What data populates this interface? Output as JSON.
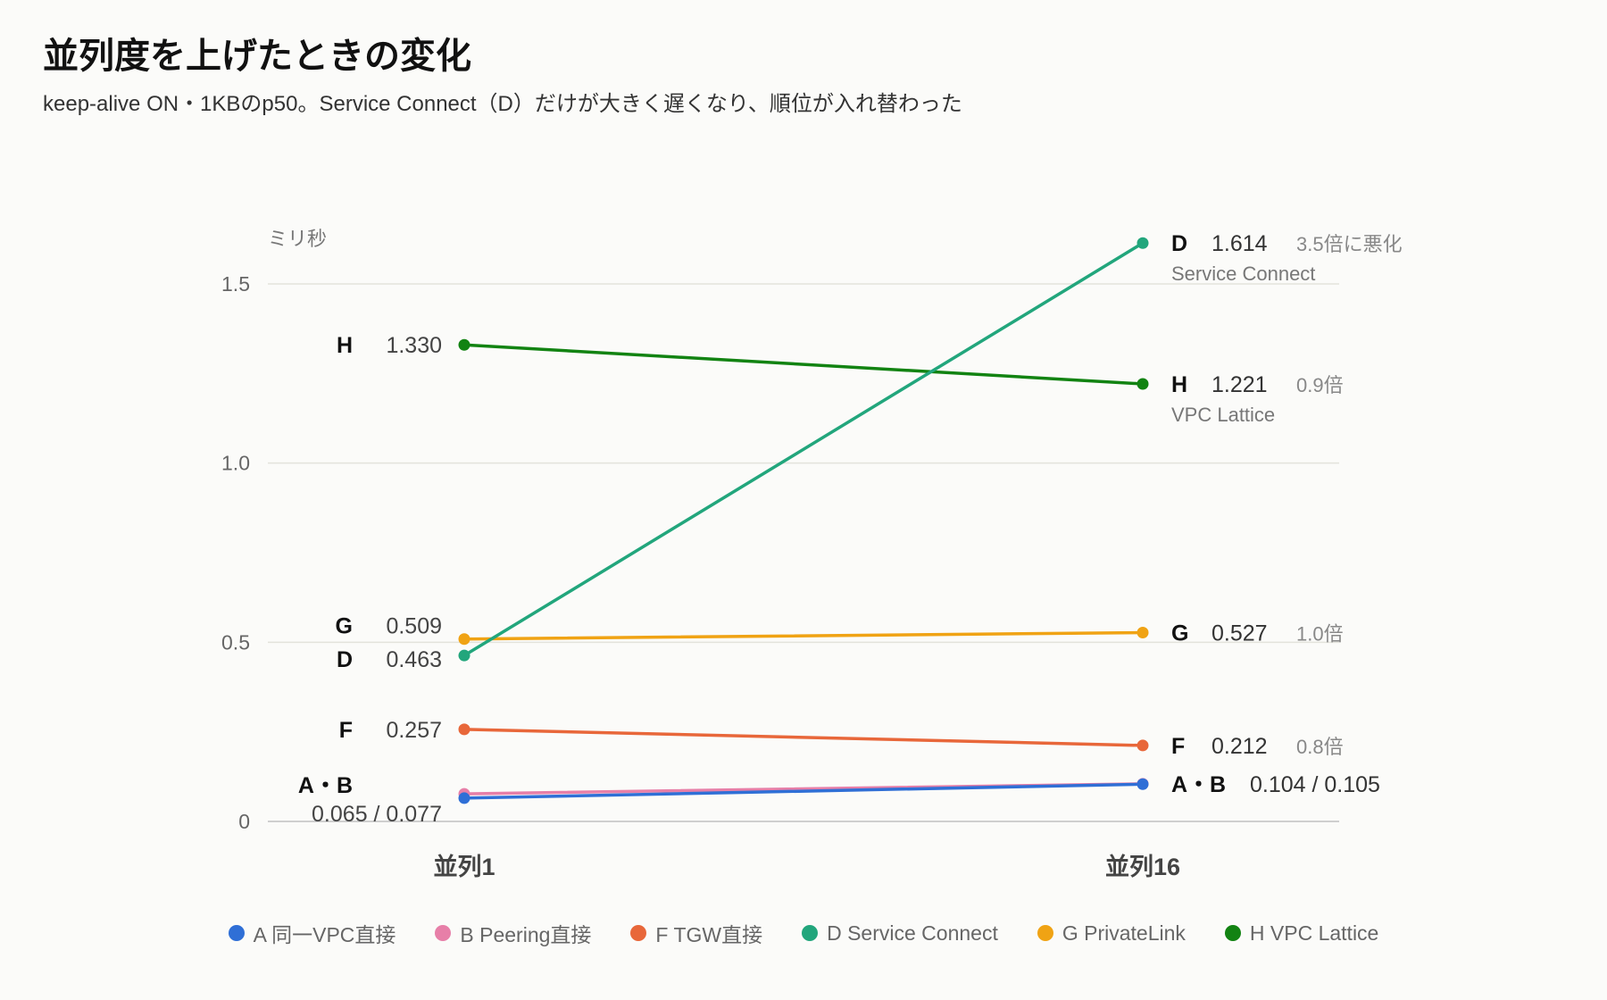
{
  "chart_data": {
    "type": "line",
    "title": "並列度を上げたときの変化",
    "subtitle": "keep-alive ON・1KBのp50。Service Connect（D）だけが大きく遅くなり、順位が入れ替わった",
    "ylabel": "ミリ秒",
    "ylim": [
      0,
      1.75
    ],
    "yticks": [
      {
        "value": 0,
        "label": "0"
      },
      {
        "value": 0.5,
        "label": "0.5"
      },
      {
        "value": 1.0,
        "label": "1.0"
      },
      {
        "value": 1.5,
        "label": "1.5"
      }
    ],
    "categories": [
      "並列1",
      "並列16"
    ],
    "grid": true,
    "legend_position": "bottom",
    "series": [
      {
        "id": "a",
        "name": "A 同一VPC直接",
        "color": "#2f6fd6",
        "values": [
          0.065,
          0.104
        ]
      },
      {
        "id": "b",
        "name": "B Peering直接",
        "color": "#e77fa8",
        "values": [
          0.077,
          0.105
        ]
      },
      {
        "id": "f",
        "name": "F TGW直接",
        "color": "#e8673a",
        "values": [
          0.257,
          0.212
        ]
      },
      {
        "id": "d",
        "name": "D Service Connect",
        "color": "#22a67c",
        "values": [
          0.463,
          1.614
        ]
      },
      {
        "id": "g",
        "name": "G PrivateLink",
        "color": "#f0a314",
        "values": [
          0.509,
          0.527
        ]
      },
      {
        "id": "h",
        "name": "H VPC Lattice",
        "color": "#128312",
        "values": [
          1.33,
          1.221
        ]
      }
    ],
    "left_labels": [
      {
        "id": "h",
        "letter": "H",
        "value": "1.330"
      },
      {
        "id": "g",
        "letter": "G",
        "value": "0.509"
      },
      {
        "id": "d",
        "letter": "D",
        "value": "0.463"
      },
      {
        "id": "f",
        "letter": "F",
        "value": "0.257"
      },
      {
        "id": "ab",
        "letter": "A・B",
        "value": "0.065 / 0.077"
      }
    ],
    "right_labels": [
      {
        "id": "d",
        "letter": "D",
        "value": "1.614",
        "ratio": "3.5倍に悪化",
        "name": "Service Connect"
      },
      {
        "id": "h",
        "letter": "H",
        "value": "1.221",
        "ratio": "0.9倍",
        "name": "VPC Lattice"
      },
      {
        "id": "g",
        "letter": "G",
        "value": "0.527",
        "ratio": "1.0倍",
        "name": ""
      },
      {
        "id": "f",
        "letter": "F",
        "value": "0.212",
        "ratio": "0.8倍",
        "name": ""
      },
      {
        "id": "ab",
        "letter": "A・B",
        "value": "0.104 / 0.105",
        "ratio": "",
        "name": ""
      }
    ]
  }
}
